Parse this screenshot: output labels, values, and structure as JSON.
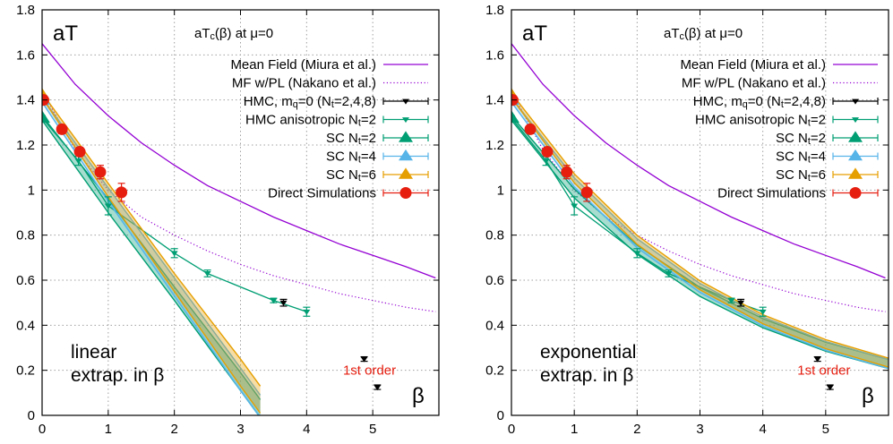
{
  "colors": {
    "mean_field": "#9400d3",
    "mf_pl": "#9400d3",
    "hmc": "#000000",
    "hmc_aniso": "#009e73",
    "sc2": "#009e73",
    "sc4": "#56b4e9",
    "sc6": "#e69f00",
    "direct": "#e51e10",
    "first_order": "#e51e10",
    "grid": "#a0a0a0"
  },
  "chart_data": [
    {
      "type": "line",
      "panel": "left",
      "corner_label": "aT",
      "subtitle": "aT_c(β) at μ=0",
      "xlabel": "β",
      "ylabel": "",
      "xlim": [
        0,
        6
      ],
      "ylim": [
        0,
        1.8
      ],
      "xticks": [
        "0",
        "1",
        "2",
        "3",
        "4",
        "5"
      ],
      "yticks": [
        "0",
        "0.2",
        "0.4",
        "0.6",
        "0.8",
        "1",
        "1.2",
        "1.4",
        "1.6",
        "1.8"
      ],
      "grid": true,
      "legend_position": "top-right",
      "legend": [
        "Mean Field (Miura et al.)",
        "MF w/PL (Nakano et al.)",
        "HMC, m_q=0 (N_t=2,4,8)",
        "HMC anisotropic N_t=2",
        "SC N_t=2",
        "SC N_t=4",
        "SC N_t=6",
        "Direct Simulations"
      ],
      "annotations": {
        "method_line1": "linear",
        "method_line2": "extrap. in β",
        "first_order": "1st order"
      },
      "series": [
        {
          "name": "Mean Field (Miura et al.)",
          "kind": "curve",
          "x": [
            0,
            0.5,
            1,
            1.5,
            2,
            2.5,
            3,
            3.5,
            4,
            4.5,
            5,
            5.5,
            5.95
          ],
          "y": [
            1.65,
            1.47,
            1.33,
            1.21,
            1.11,
            1.02,
            0.95,
            0.88,
            0.82,
            0.76,
            0.71,
            0.66,
            0.61
          ]
        },
        {
          "name": "MF w/PL (Nakano et al.)",
          "kind": "dotted",
          "x": [
            0,
            0.5,
            1,
            1.5,
            2,
            2.5,
            3,
            3.5,
            4,
            4.5,
            5,
            5.5,
            5.95
          ],
          "y": [
            1.44,
            1.18,
            1.0,
            0.88,
            0.8,
            0.73,
            0.67,
            0.62,
            0.58,
            0.54,
            0.51,
            0.48,
            0.46
          ]
        },
        {
          "name": "HMC, m_q=0 (N_t=2,4,8)",
          "kind": "points",
          "x": [
            3.65,
            4.87,
            5.07
          ],
          "y": [
            0.5,
            0.25,
            0.125
          ],
          "err": [
            0.015,
            0.01,
            0.01
          ]
        },
        {
          "name": "HMC anisotropic N_t=2",
          "kind": "points-line",
          "x": [
            0,
            0.55,
            1,
            2,
            2.5,
            3.5,
            4
          ],
          "y": [
            1.32,
            1.13,
            0.93,
            0.72,
            0.63,
            0.51,
            0.46
          ],
          "err": [
            0.01,
            0.02,
            0.04,
            0.02,
            0.015,
            0.01,
            0.02
          ]
        },
        {
          "name": "SC N_t=2",
          "kind": "band",
          "x": [
            0,
            1,
            2,
            3,
            3.3
          ],
          "y": [
            1.32,
            0.93,
            0.54,
            0.15,
            0.03
          ],
          "err": [
            0.01,
            0.03,
            0.03,
            0.04,
            0.04
          ]
        },
        {
          "name": "SC N_t=4",
          "kind": "band",
          "x": [
            0,
            1,
            2,
            3,
            3.3
          ],
          "y": [
            1.4,
            0.98,
            0.57,
            0.16,
            0.04
          ],
          "err": [
            0.01,
            0.03,
            0.04,
            0.05,
            0.05
          ]
        },
        {
          "name": "SC N_t=6",
          "kind": "band",
          "x": [
            0,
            1,
            2,
            3,
            3.3
          ],
          "y": [
            1.42,
            1.0,
            0.59,
            0.19,
            0.07
          ],
          "err": [
            0.01,
            0.03,
            0.04,
            0.06,
            0.06
          ]
        },
        {
          "name": "Direct Simulations",
          "kind": "points",
          "x": [
            0.02,
            0.3,
            0.57,
            0.88,
            1.2
          ],
          "y": [
            1.4,
            1.27,
            1.17,
            1.08,
            0.99
          ],
          "err": [
            0.02,
            0.02,
            0.02,
            0.03,
            0.04
          ]
        }
      ]
    },
    {
      "type": "line",
      "panel": "right",
      "corner_label": "aT",
      "subtitle": "aT_c(β) at μ=0",
      "xlabel": "β",
      "ylabel": "",
      "xlim": [
        0,
        6
      ],
      "ylim": [
        0,
        1.8
      ],
      "xticks": [
        "0",
        "1",
        "2",
        "3",
        "4",
        "5"
      ],
      "yticks": [
        "0",
        "0.2",
        "0.4",
        "0.6",
        "0.8",
        "1",
        "1.2",
        "1.4",
        "1.6",
        "1.8"
      ],
      "grid": true,
      "legend_position": "top-right",
      "legend": [
        "Mean Field (Miura et al.)",
        "MF w/PL (Nakano et al.)",
        "HMC, m_q=0 (N_t=2,4,8)",
        "HMC anisotropic N_t=2",
        "SC N_t=2",
        "SC N_t=4",
        "SC N_t=6",
        "Direct Simulations"
      ],
      "annotations": {
        "method_line1": "exponential",
        "method_line2": "extrap. in β",
        "first_order": "1st order"
      },
      "series": [
        {
          "name": "Mean Field (Miura et al.)",
          "kind": "curve",
          "x": [
            0,
            0.5,
            1,
            1.5,
            2,
            2.5,
            3,
            3.5,
            4,
            4.5,
            5,
            5.5,
            5.95
          ],
          "y": [
            1.65,
            1.47,
            1.33,
            1.21,
            1.11,
            1.02,
            0.95,
            0.88,
            0.82,
            0.76,
            0.71,
            0.66,
            0.61
          ]
        },
        {
          "name": "MF w/PL (Nakano et al.)",
          "kind": "dotted",
          "x": [
            0,
            0.5,
            1,
            1.5,
            2,
            2.5,
            3,
            3.5,
            4,
            4.5,
            5,
            5.5,
            5.95
          ],
          "y": [
            1.44,
            1.18,
            1.0,
            0.88,
            0.8,
            0.73,
            0.67,
            0.62,
            0.58,
            0.54,
            0.51,
            0.48,
            0.46
          ]
        },
        {
          "name": "HMC, m_q=0 (N_t=2,4,8)",
          "kind": "points",
          "x": [
            3.65,
            4.87,
            5.07
          ],
          "y": [
            0.5,
            0.25,
            0.125
          ],
          "err": [
            0.015,
            0.01,
            0.01
          ]
        },
        {
          "name": "HMC anisotropic N_t=2",
          "kind": "points-line",
          "x": [
            0,
            0.55,
            1,
            2,
            2.5,
            3.5,
            4
          ],
          "y": [
            1.32,
            1.13,
            0.93,
            0.72,
            0.63,
            0.51,
            0.46
          ],
          "err": [
            0.01,
            0.02,
            0.04,
            0.02,
            0.015,
            0.01,
            0.02
          ]
        },
        {
          "name": "SC N_t=2",
          "kind": "band",
          "x": [
            0,
            1,
            2,
            3,
            4,
            5,
            6
          ],
          "y": [
            1.32,
            0.985,
            0.735,
            0.548,
            0.409,
            0.305,
            0.228
          ],
          "err": [
            0.01,
            0.02,
            0.02,
            0.02,
            0.02,
            0.02,
            0.02
          ]
        },
        {
          "name": "SC N_t=4",
          "kind": "band",
          "x": [
            0,
            1,
            2,
            3,
            4,
            5,
            6
          ],
          "y": [
            1.4,
            1.034,
            0.764,
            0.565,
            0.417,
            0.308,
            0.228
          ],
          "err": [
            0.01,
            0.02,
            0.02,
            0.02,
            0.02,
            0.02,
            0.02
          ]
        },
        {
          "name": "SC N_t=6",
          "kind": "band",
          "x": [
            0,
            1,
            2,
            3,
            4,
            5,
            6
          ],
          "y": [
            1.42,
            1.052,
            0.779,
            0.577,
            0.427,
            0.316,
            0.234
          ],
          "err": [
            0.01,
            0.02,
            0.02,
            0.02,
            0.02,
            0.02,
            0.02
          ]
        },
        {
          "name": "Direct Simulations",
          "kind": "points",
          "x": [
            0.02,
            0.3,
            0.57,
            0.88,
            1.2
          ],
          "y": [
            1.4,
            1.27,
            1.17,
            1.08,
            0.99
          ],
          "err": [
            0.02,
            0.02,
            0.02,
            0.03,
            0.04
          ]
        }
      ]
    }
  ]
}
